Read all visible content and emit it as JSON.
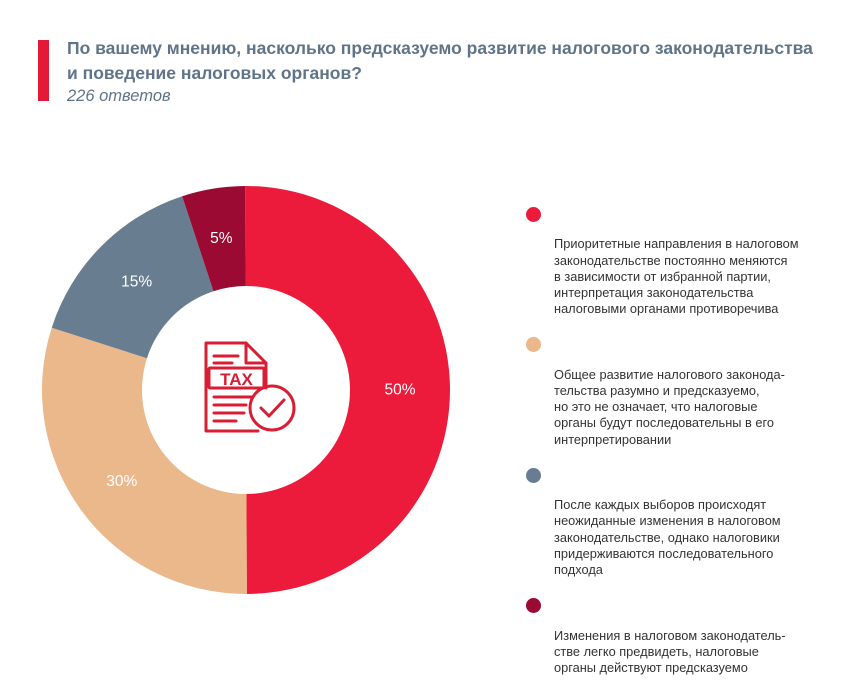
{
  "header": {
    "title": "По вашему мнению, насколько предсказуемо развитие налогового законодательства и поведение налоговых органов?",
    "subtitle": "226 ответов"
  },
  "center_icon": {
    "name": "tax-document-check-icon",
    "text": "TAX",
    "color": "#d81e34"
  },
  "chart_data": {
    "type": "pie",
    "donut": true,
    "title": "По вашему мнению, насколько предсказуемо развитие налогового законодательства и поведение налоговых органов?",
    "slices": [
      {
        "label": "Приоритетные направления в налоговом законодательстве постоянно меняются в зависимости от избранной партии, интерпретация законодательства налоговыми органами противоречива",
        "value": 50,
        "display": "50%",
        "color": "#ed1b3b"
      },
      {
        "label": "Общее развитие налогового законодательства разумно и предсказуемо, но это не означает, что налоговые органы будут последовательны в его интерпретировании",
        "value": 30,
        "display": "30%",
        "color": "#ebb88c"
      },
      {
        "label": "После каждых выборов происходят неожиданные изменения в налоговом законодательстве, однако налоговики придерживаются последовательного подхода",
        "value": 15,
        "display": "15%",
        "color": "#687d90"
      },
      {
        "label": "Изменения в налоговом законодательстве легко предвидеть, налоговые органы действуют предсказуемо",
        "value": 5,
        "display": "5%",
        "color": "#9a0a32"
      }
    ],
    "legend_position": "right"
  },
  "legend": [
    {
      "text": "Приоритетные направления в налоговом\nзаконодательстве постоянно меняются\nв зависимости от избранной партии,\nинтерпретация законодательства\nналоговыми органами противоречива",
      "color": "#ed1b3b"
    },
    {
      "text": "Общее развитие налогового законода-\nтельства разумно и предсказуемо,\nно это не означает, что налоговые\nорганы будут последовательны в его\nинтерпретировании",
      "color": "#ebb88c"
    },
    {
      "text": "После каждых выборов происходят\nнеожиданные изменения в налоговом\nзаконодательстве, однако налоговики\nпридерживаются последовательного\nподхода",
      "color": "#687d90"
    },
    {
      "text": "Изменения в налоговом законодатель-\nстве легко предвидеть, налоговые\nорганы действуют предсказуемо",
      "color": "#9a0a32"
    }
  ]
}
